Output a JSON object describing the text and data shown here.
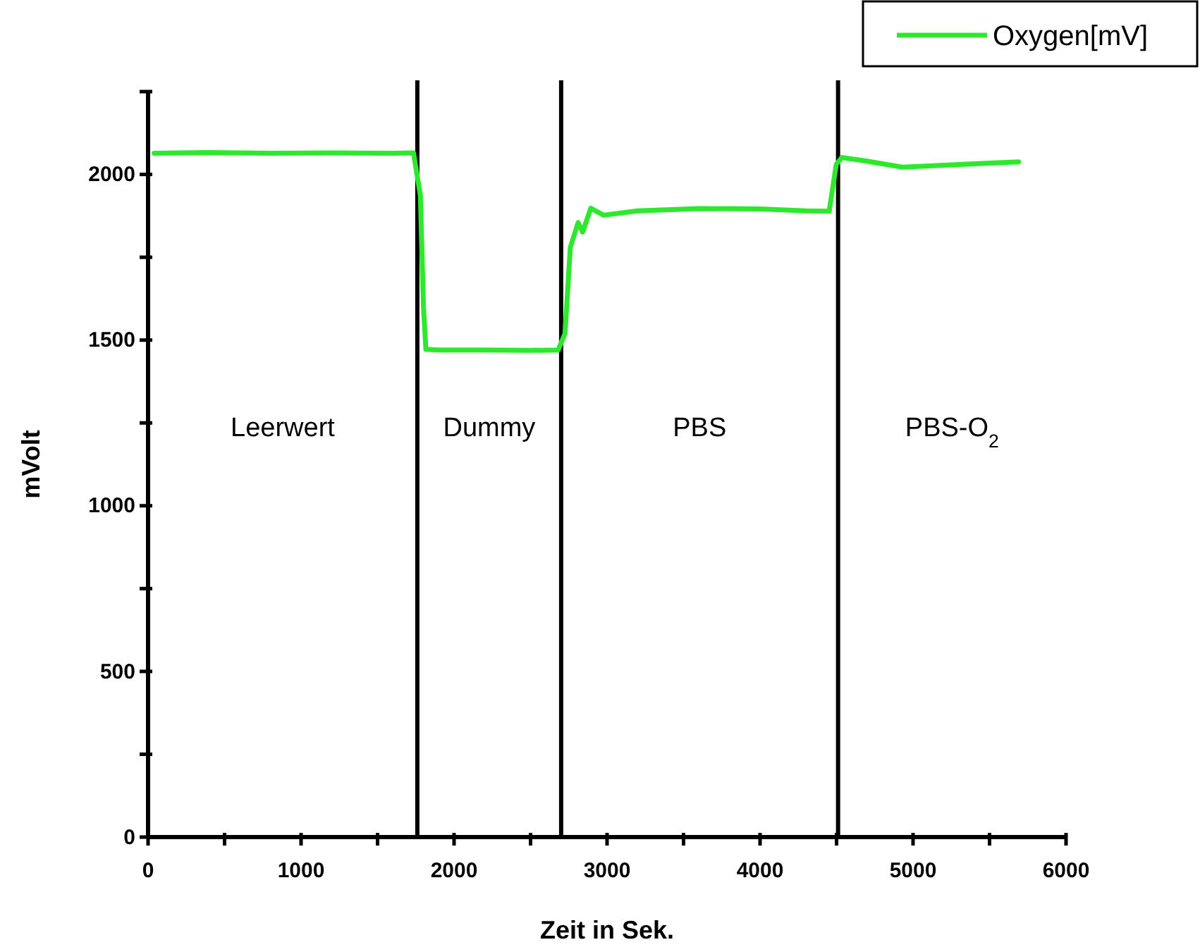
{
  "chart_data": {
    "type": "line",
    "xlabel": "Zeit in Sek.",
    "ylabel": "mVolt",
    "xlim": [
      0,
      6000
    ],
    "ylim": [
      0,
      2250
    ],
    "xticks": [
      0,
      {
        "value": 500,
        "label": null
      },
      1000,
      {
        "value": 1500,
        "label": null
      },
      2000,
      {
        "value": 2500,
        "label": null
      },
      3000,
      {
        "value": 3500,
        "label": null
      },
      4000,
      {
        "value": 4500,
        "label": null
      },
      5000,
      {
        "value": 5500,
        "label": null
      },
      6000
    ],
    "yticks": [
      0,
      {
        "value": 250,
        "label": null
      },
      500,
      {
        "value": 750,
        "label": null
      },
      1000,
      {
        "value": 1250,
        "label": null
      },
      1500,
      {
        "value": 1750,
        "label": null
      },
      2000,
      {
        "value": 2250,
        "label": null
      }
    ],
    "grid": false,
    "legend": "top right",
    "line_style": "solid",
    "marker": "none",
    "series": [
      {
        "name": "Oxygen[mV]",
        "color": "#2ee82e",
        "x": [
          40,
          400,
          800,
          1200,
          1600,
          1735,
          1780,
          1800,
          1816,
          1900,
          2200,
          2500,
          2680,
          2725,
          2760,
          2811,
          2840,
          2894,
          2977,
          3200,
          3600,
          4000,
          4300,
          4452,
          4498,
          4534,
          4700,
          4931,
          5200,
          5500,
          5690
        ],
        "values": [
          2064,
          2066,
          2064,
          2065,
          2064,
          2065,
          1936,
          1600,
          1472,
          1470,
          1470,
          1469,
          1470,
          1519,
          1780,
          1855,
          1826,
          1898,
          1877,
          1890,
          1897,
          1896,
          1890,
          1889,
          2030,
          2051,
          2040,
          2022,
          2028,
          2034,
          2038
        ]
      }
    ],
    "ref_lines": [
      {
        "axis": "x",
        "value": 1760,
        "color": "#000000"
      },
      {
        "axis": "x",
        "value": 2700,
        "color": "#000000"
      },
      {
        "axis": "x",
        "value": 4510,
        "color": "#000000"
      }
    ],
    "annotations": [
      "Leerwert",
      "Dummy",
      "PBS",
      "PBS-O$_{2}$"
    ]
  }
}
